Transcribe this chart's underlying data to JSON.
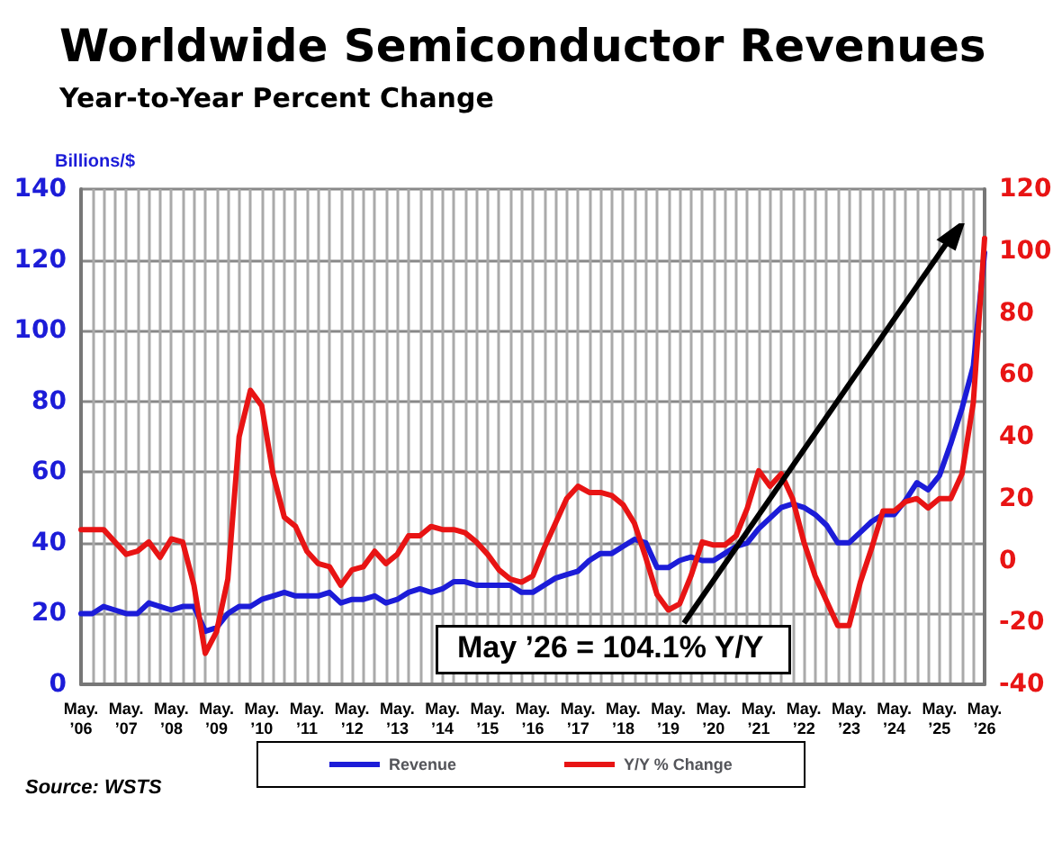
{
  "chart_data": {
    "type": "line",
    "title": "Worldwide Semiconductor Revenues",
    "subtitle": "Year-to-Year Percent Change",
    "ylabel": "Billions/$",
    "categories": [
      "May. ’06",
      null,
      null,
      null,
      "May. ’07",
      null,
      null,
      null,
      "May. ’08",
      null,
      null,
      null,
      "May. ’09",
      null,
      null,
      null,
      "May. ’10",
      null,
      null,
      null,
      "May. ’11",
      null,
      null,
      null,
      "May. ’12",
      null,
      null,
      null,
      "May. ’13",
      null,
      null,
      null,
      "May. ’14",
      null,
      null,
      null,
      "May. ’15",
      null,
      null,
      null,
      "May. ’16",
      null,
      null,
      null,
      "May. ’17",
      null,
      null,
      null,
      "May. ’18",
      null,
      null,
      null,
      "May. ’19",
      null,
      null,
      null,
      "May. ’20",
      null,
      null,
      null,
      "May. ’21",
      null,
      null,
      null,
      "May. ’22",
      null,
      null,
      null,
      "May. ’23",
      null,
      null,
      null,
      "May. ’24",
      null,
      null,
      null,
      "May. ’25",
      null,
      null,
      null,
      "May. ’26"
    ],
    "series": [
      {
        "name": "Revenue",
        "color": "#1c1cd8",
        "values": [
          20,
          20,
          22,
          21,
          20,
          20,
          23,
          22,
          21,
          22,
          22,
          15,
          16,
          20,
          22,
          22,
          24,
          25,
          26,
          25,
          25,
          25,
          26,
          23,
          24,
          24,
          25,
          23,
          24,
          26,
          27,
          26,
          27,
          29,
          29,
          28,
          28,
          28,
          28,
          26,
          26,
          28,
          30,
          31,
          32,
          35,
          37,
          37,
          39,
          41,
          40,
          33,
          33,
          35,
          36,
          35,
          35,
          37,
          39,
          40,
          44,
          47,
          50,
          51,
          50,
          48,
          45,
          40,
          40,
          43,
          46,
          48,
          48,
          52,
          57,
          55,
          59,
          68,
          78,
          90,
          122
        ]
      },
      {
        "name": "Y/Y % Change",
        "color": "#e81414",
        "axis": "y2",
        "values": [
          10,
          10,
          10,
          6,
          2,
          3,
          6,
          1,
          7,
          6,
          -8,
          -30,
          -23,
          -6,
          40,
          55,
          50,
          28,
          14,
          11,
          3,
          -1,
          -2,
          -8,
          -3,
          -2,
          3,
          -1,
          2,
          8,
          8,
          11,
          10,
          10,
          9,
          6,
          2,
          -3,
          -6,
          -7,
          -5,
          4,
          12,
          20,
          24,
          22,
          22,
          21,
          18,
          12,
          1,
          -11,
          -16,
          -14,
          -5,
          6,
          5,
          5,
          8,
          17,
          29,
          24,
          28,
          20,
          6,
          -5,
          -13,
          -21,
          -21,
          -7,
          4,
          16,
          16,
          19,
          20,
          17,
          20,
          20,
          28,
          51,
          104.1
        ]
      }
    ],
    "ylim": [
      0,
      140
    ],
    "yticks": [
      0,
      20,
      40,
      60,
      80,
      100,
      120,
      140
    ],
    "y2lim": [
      -40,
      120
    ],
    "y2ticks": [
      -40,
      -20,
      0,
      20,
      40,
      60,
      80,
      100,
      120
    ],
    "grid": true,
    "legend": "bottom",
    "marker": "none",
    "line_style": "solid",
    "annotations": [
      "May ’26 = 104.1% Y/Y",
      "Source: WSTS"
    ]
  }
}
